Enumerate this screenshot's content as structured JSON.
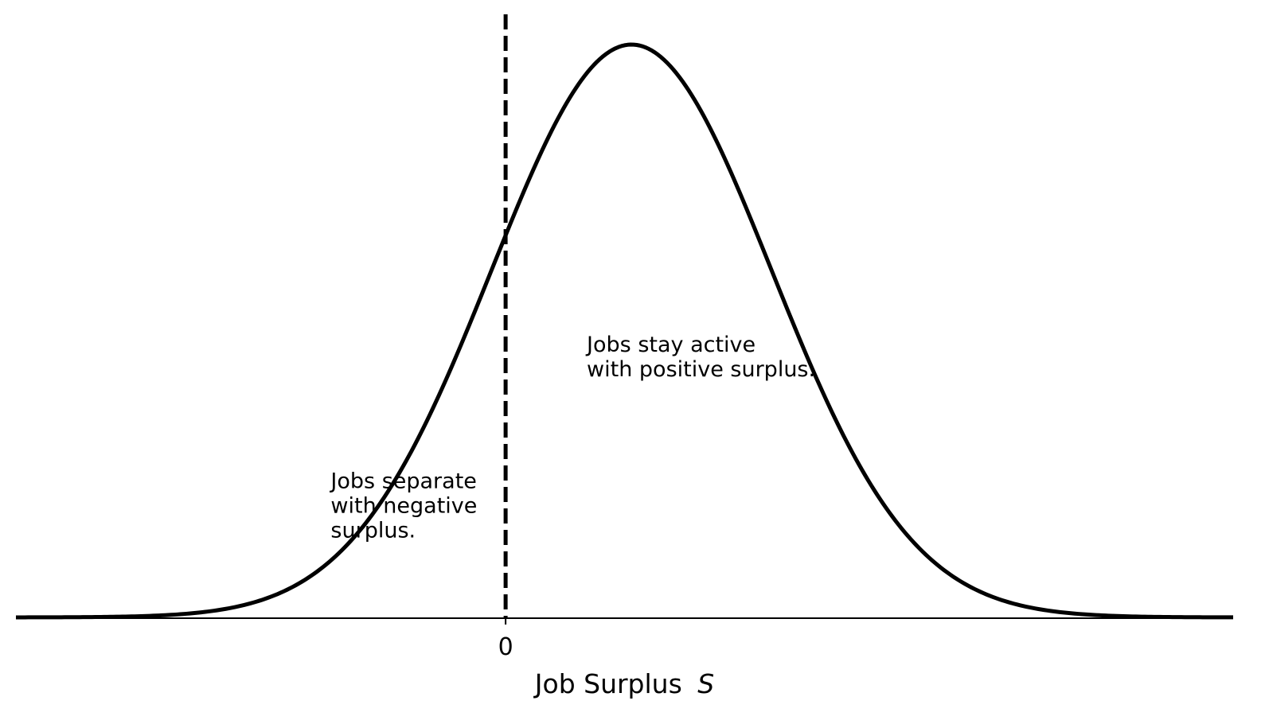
{
  "chart_data": {
    "type": "line",
    "title": "",
    "xlabel": "Job Surplus",
    "xlabel_symbol": "S",
    "ylabel": "",
    "xlim": [
      -3.5,
      5.2
    ],
    "ylim": [
      0,
      0.42
    ],
    "grid": false,
    "legend": "none",
    "x_ticks": [
      0
    ],
    "x_tick_labels": [
      "0"
    ],
    "y_ticks": [],
    "series": [
      {
        "distribution": "normal",
        "mean": 0.9,
        "std": 1.0,
        "line_color": "#000000"
      }
    ],
    "threshold": {
      "x": 0,
      "style": "dashed",
      "color": "#000000"
    },
    "annotations": [
      {
        "lines": [
          "Jobs separate",
          "with negative",
          "surplus."
        ],
        "x": -1.25,
        "y": 0.09
      },
      {
        "lines": [
          "Jobs stay active",
          "with positive surplus."
        ],
        "x": 0.58,
        "y": 0.185
      }
    ]
  }
}
